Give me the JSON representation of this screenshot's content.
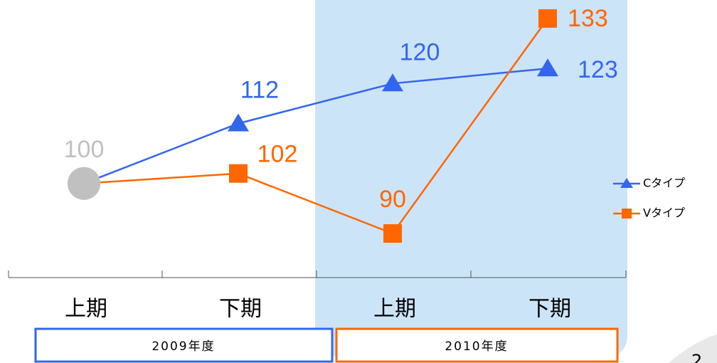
{
  "chart_data": {
    "type": "line",
    "categories": [
      "上期",
      "下期",
      "上期",
      "下期"
    ],
    "groups": [
      "2009年度",
      "2010年度"
    ],
    "series": [
      {
        "name": "Cタイプ",
        "color": "#3366ee",
        "values": [
          100,
          112,
          120,
          123
        ]
      },
      {
        "name": "Vタイプ",
        "color": "#ff6600",
        "values": [
          100,
          102,
          90,
          133
        ]
      }
    ],
    "start_color": "#c0c0c0",
    "page_number": "2"
  }
}
